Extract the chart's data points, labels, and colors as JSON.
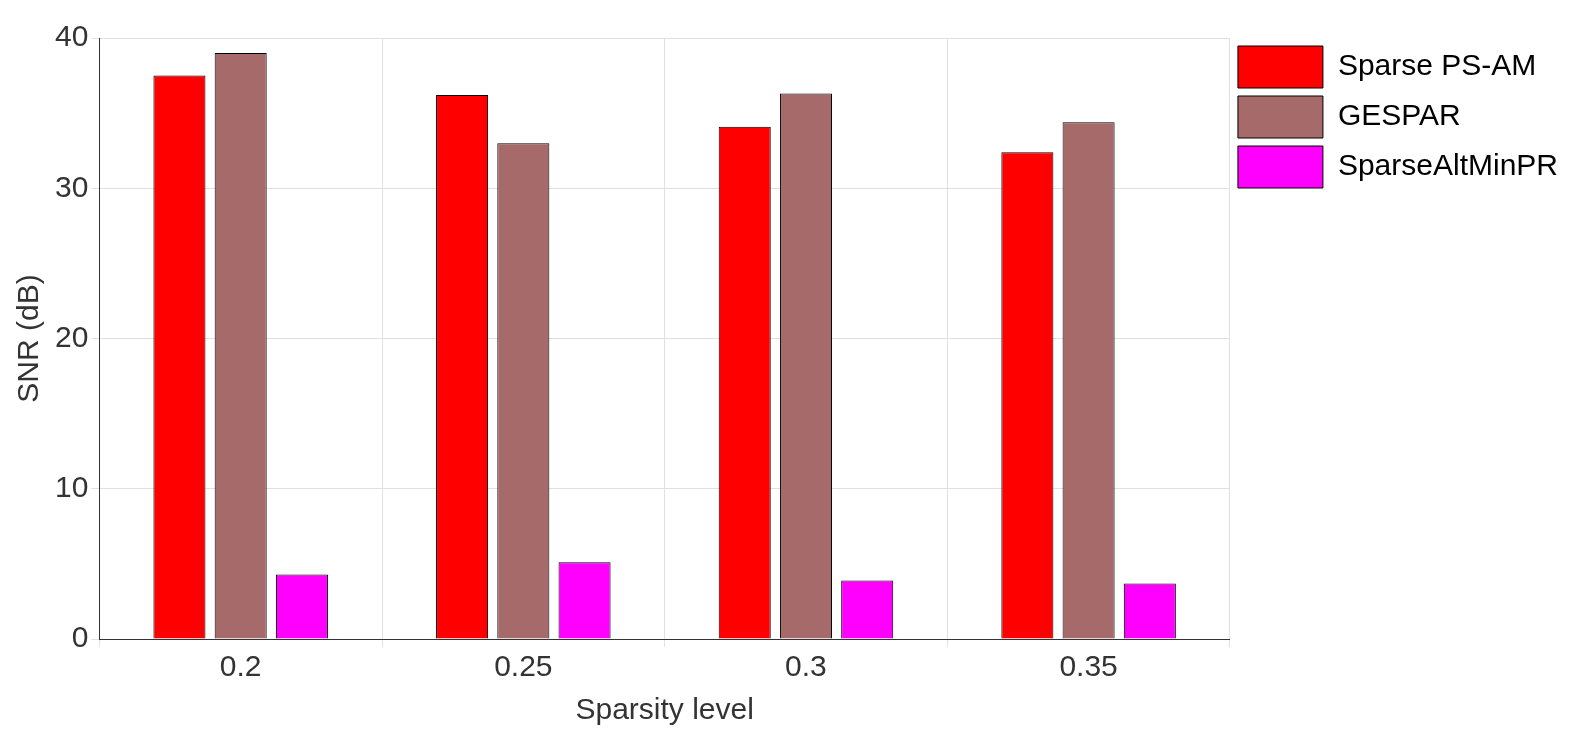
{
  "chart_data": {
    "type": "bar",
    "xlabel": "Sparsity level",
    "ylabel": "SNR (dB)",
    "categories": [
      "0.2",
      "0.25",
      "0.3",
      "0.35"
    ],
    "series": [
      {
        "name": "Sparse PS-AM",
        "color": "#ff0000",
        "values": [
          37.5,
          36.2,
          34.1,
          32.4
        ]
      },
      {
        "name": "GESPAR",
        "color": "#a66a6a",
        "values": [
          39.0,
          33.0,
          36.3,
          34.4
        ]
      },
      {
        "name": "SparseAltMinPR",
        "color": "#ff00ff",
        "values": [
          4.3,
          5.1,
          3.9,
          3.7
        ]
      }
    ],
    "ylim": [
      0,
      40
    ],
    "yticks": [
      0,
      10,
      20,
      30,
      40
    ],
    "grid": true,
    "legend": "top right"
  }
}
